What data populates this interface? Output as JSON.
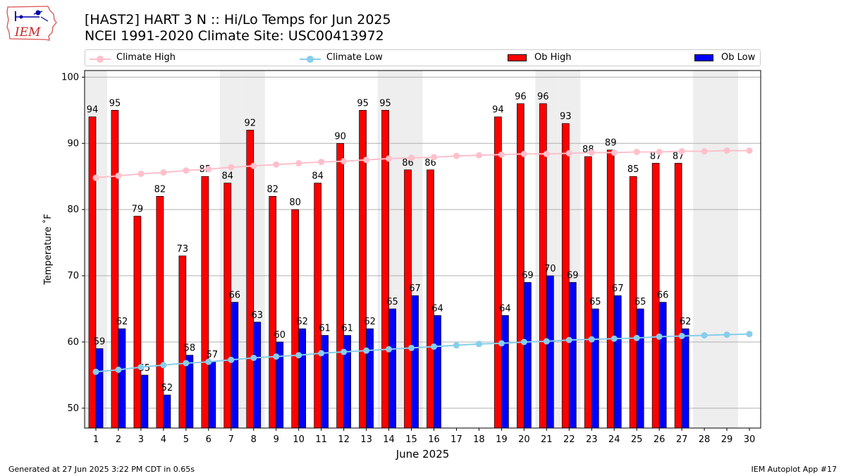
{
  "header": {
    "title_line1": "[HAST2] HART 3 N :: Hi/Lo Temps for Jun 2025",
    "title_line2": "NCEI 1991-2020 Climate Site: USC00413972",
    "logo_text": "IEM"
  },
  "footer": {
    "left": "Generated at 27 Jun 2025 3:22 PM CDT in 0.65s",
    "right": "IEM Autoplot App #17"
  },
  "colors": {
    "ob_high": "#ff0000",
    "ob_low": "#0000ff",
    "climate_high": "#ffc0cb",
    "climate_low": "#87ceeb",
    "weekend_band": "#eeeeee",
    "grid": "#b0b0b0"
  },
  "chart_data": {
    "type": "bar",
    "title": "[HAST2] HART 3 N :: Hi/Lo Temps for Jun 2025",
    "subtitle": "NCEI 1991-2020 Climate Site: USC00413972",
    "xlabel": "June 2025",
    "ylabel": "Temperature ˚F",
    "ylim": [
      47,
      101
    ],
    "yticks": [
      50,
      60,
      70,
      80,
      90,
      100
    ],
    "grid": true,
    "legend_position": "top",
    "weekend_days": [
      1,
      7,
      8,
      14,
      15,
      21,
      22,
      28,
      29
    ],
    "categories": [
      "1",
      "2",
      "3",
      "4",
      "5",
      "6",
      "7",
      "8",
      "9",
      "10",
      "11",
      "12",
      "13",
      "14",
      "15",
      "16",
      "17",
      "18",
      "19",
      "20",
      "21",
      "22",
      "23",
      "24",
      "25",
      "26",
      "27",
      "28",
      "29",
      "30"
    ],
    "series": [
      {
        "name": "Climate High",
        "kind": "line",
        "values": [
          84.8,
          85.1,
          85.4,
          85.6,
          85.9,
          86.1,
          86.4,
          86.6,
          86.8,
          87.0,
          87.2,
          87.3,
          87.5,
          87.7,
          87.8,
          87.9,
          88.1,
          88.2,
          88.3,
          88.4,
          88.4,
          88.5,
          88.6,
          88.6,
          88.7,
          88.7,
          88.8,
          88.8,
          88.9,
          88.9
        ]
      },
      {
        "name": "Climate Low",
        "kind": "line",
        "values": [
          55.5,
          55.8,
          56.2,
          56.5,
          56.8,
          57.0,
          57.3,
          57.6,
          57.8,
          58.0,
          58.3,
          58.5,
          58.7,
          58.9,
          59.1,
          59.3,
          59.5,
          59.7,
          59.8,
          60.0,
          60.1,
          60.3,
          60.4,
          60.5,
          60.6,
          60.8,
          60.9,
          61.0,
          61.1,
          61.2
        ]
      },
      {
        "name": "Ob High",
        "kind": "bar",
        "values": [
          94,
          95,
          79,
          82,
          73,
          85,
          84,
          92,
          82,
          80,
          84,
          90,
          95,
          95,
          86,
          86,
          null,
          null,
          94,
          96,
          96,
          93,
          88,
          89,
          85,
          87,
          87,
          null,
          null,
          null
        ]
      },
      {
        "name": "Ob Low",
        "kind": "bar",
        "values": [
          59,
          62,
          55,
          52,
          58,
          57,
          66,
          63,
          60,
          62,
          61,
          61,
          62,
          65,
          67,
          64,
          null,
          null,
          64,
          69,
          70,
          69,
          65,
          67,
          65,
          66,
          62,
          null,
          null,
          null
        ]
      }
    ]
  }
}
